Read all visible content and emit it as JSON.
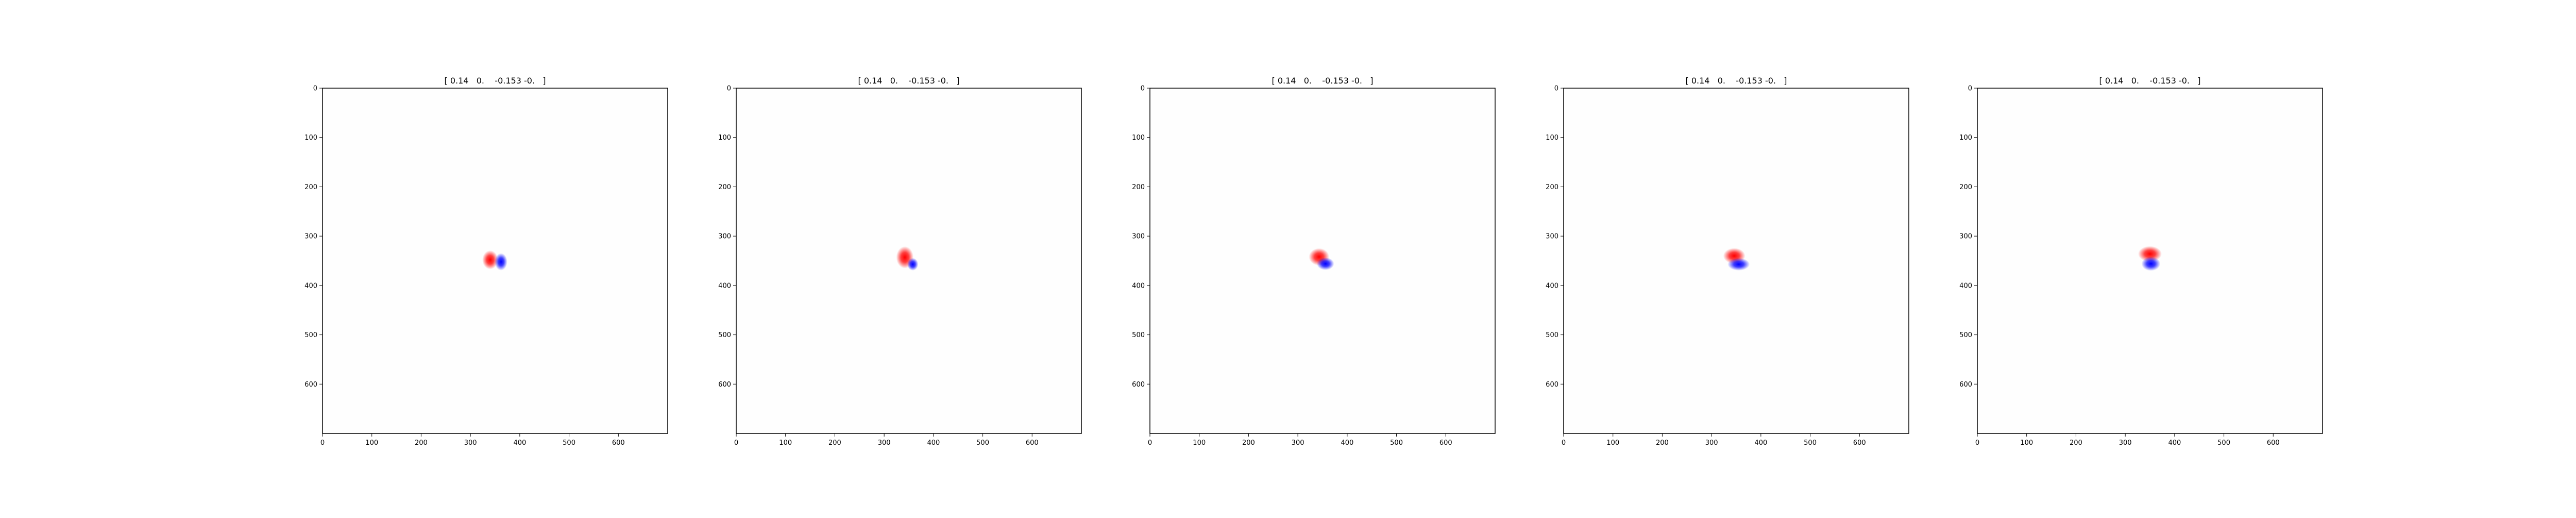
{
  "figure": {
    "background": "#ffffff"
  },
  "chart_data": [
    {
      "type": "heatmap",
      "title": "[ 0.14   0.    -0.153 -0.   ]",
      "xlabel": "",
      "ylabel": "",
      "xlim": [
        0,
        700
      ],
      "ylim": [
        700,
        0
      ],
      "x_ticks": [
        0,
        100,
        200,
        300,
        400,
        500,
        600
      ],
      "y_ticks": [
        0,
        100,
        200,
        300,
        400,
        500,
        600
      ],
      "colormap": "bwr",
      "colors": {
        "positive": "#ff0000",
        "negative": "#0000ff",
        "zero": "#ffffff"
      },
      "blobs": [
        {
          "sign": "positive",
          "x": 340,
          "y": 348,
          "rx": 10,
          "ry": 12
        },
        {
          "sign": "negative",
          "x": 362,
          "y": 352,
          "rx": 8,
          "ry": 11
        }
      ]
    },
    {
      "type": "heatmap",
      "title": "[ 0.14   0.    -0.153 -0.   ]",
      "xlabel": "",
      "ylabel": "",
      "xlim": [
        0,
        700
      ],
      "ylim": [
        700,
        0
      ],
      "x_ticks": [
        0,
        100,
        200,
        300,
        400,
        500,
        600
      ],
      "y_ticks": [
        0,
        100,
        200,
        300,
        400,
        500,
        600
      ],
      "colormap": "bwr",
      "colors": {
        "positive": "#ff0000",
        "negative": "#0000ff",
        "zero": "#ffffff"
      },
      "blobs": [
        {
          "sign": "positive",
          "x": 342,
          "y": 343,
          "rx": 11,
          "ry": 14
        },
        {
          "sign": "negative",
          "x": 358,
          "y": 357,
          "rx": 7,
          "ry": 8
        }
      ]
    },
    {
      "type": "heatmap",
      "title": "[ 0.14   0.    -0.153 -0.   ]",
      "xlabel": "",
      "ylabel": "",
      "xlim": [
        0,
        700
      ],
      "ylim": [
        700,
        0
      ],
      "x_ticks": [
        0,
        100,
        200,
        300,
        400,
        500,
        600
      ],
      "y_ticks": [
        0,
        100,
        200,
        300,
        400,
        500,
        600
      ],
      "colormap": "bwr",
      "colors": {
        "positive": "#ff0000",
        "negative": "#0000ff",
        "zero": "#ffffff"
      },
      "blobs": [
        {
          "sign": "positive",
          "x": 343,
          "y": 342,
          "rx": 13,
          "ry": 11
        },
        {
          "sign": "negative",
          "x": 356,
          "y": 356,
          "rx": 11,
          "ry": 8
        }
      ]
    },
    {
      "type": "heatmap",
      "title": "[ 0.14   0.    -0.153 -0.   ]",
      "xlabel": "",
      "ylabel": "",
      "xlim": [
        0,
        700
      ],
      "ylim": [
        700,
        0
      ],
      "x_ticks": [
        0,
        100,
        200,
        300,
        400,
        500,
        600
      ],
      "y_ticks": [
        0,
        100,
        200,
        300,
        400,
        500,
        600
      ],
      "colormap": "bwr",
      "colors": {
        "positive": "#ff0000",
        "negative": "#0000ff",
        "zero": "#ffffff"
      },
      "blobs": [
        {
          "sign": "positive",
          "x": 346,
          "y": 340,
          "rx": 14,
          "ry": 10
        },
        {
          "sign": "negative",
          "x": 355,
          "y": 357,
          "rx": 14,
          "ry": 8
        }
      ]
    },
    {
      "type": "heatmap",
      "title": "[ 0.14   0.    -0.153 -0.   ]",
      "xlabel": "",
      "ylabel": "",
      "xlim": [
        0,
        700
      ],
      "ylim": [
        700,
        0
      ],
      "x_ticks": [
        0,
        100,
        200,
        300,
        400,
        500,
        600
      ],
      "y_ticks": [
        0,
        100,
        200,
        300,
        400,
        500,
        600
      ],
      "colormap": "bwr",
      "colors": {
        "positive": "#ff0000",
        "negative": "#0000ff",
        "zero": "#ffffff"
      },
      "blobs": [
        {
          "sign": "positive",
          "x": 350,
          "y": 336,
          "rx": 15,
          "ry": 10
        },
        {
          "sign": "negative",
          "x": 352,
          "y": 356,
          "rx": 12,
          "ry": 9
        }
      ]
    }
  ]
}
